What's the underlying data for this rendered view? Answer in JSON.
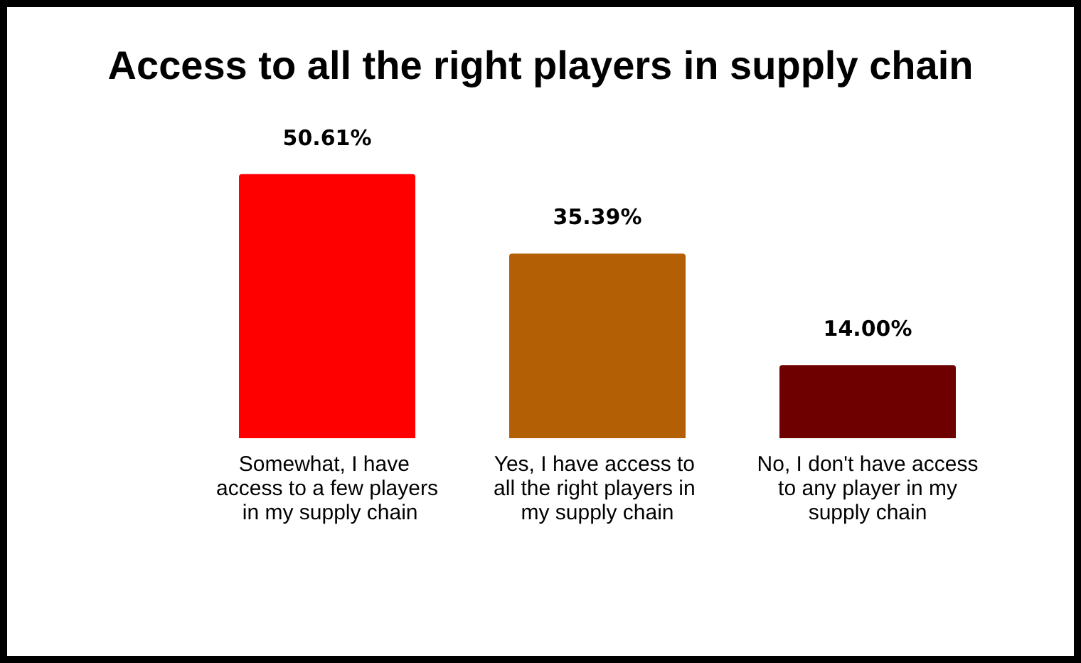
{
  "chart_data": {
    "type": "bar",
    "title": "Access to all the right players in supply chain",
    "categories": [
      "Somewhat, I have access to a few players in my supply chain",
      "Yes, I have access to all the right players in my supply chain",
      "No, I don't have access to any player in my supply chain"
    ],
    "values": [
      50.61,
      35.39,
      14.0
    ],
    "colors": [
      "#ff0000",
      "#b35f06",
      "#6e0000"
    ],
    "value_labels": [
      "50.61%",
      "35.39%",
      "14.00%"
    ]
  }
}
